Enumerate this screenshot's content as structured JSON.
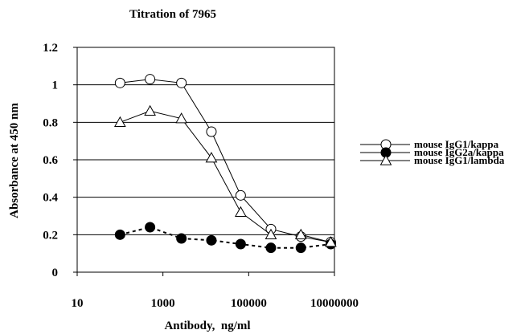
{
  "chart_data": {
    "type": "line",
    "title": "Titration of 7965",
    "xlabel": "Antibody,  ng/ml",
    "ylabel": "Absorbance at 450 nm",
    "x_scale": "log",
    "xlim": [
      10,
      10000000
    ],
    "ylim": [
      0,
      1.2
    ],
    "x_ticks": [
      10,
      1000,
      100000,
      10000000
    ],
    "x_tick_labels": [
      "10",
      "1000",
      "100000",
      "10000000"
    ],
    "y_ticks": [
      0,
      0.2,
      0.4,
      0.6,
      0.8,
      1,
      1.2
    ],
    "y_tick_labels": [
      "0",
      "0.2",
      "0.4",
      "0.6",
      "0.8",
      "1",
      "1.2"
    ],
    "grid": "horizontal",
    "legend_position": "right",
    "series": [
      {
        "name": "mouse IgG1/kappa",
        "marker": "circle-open",
        "line": "solid",
        "points": [
          [
            100,
            1.01
          ],
          [
            500,
            1.03
          ],
          [
            2700,
            1.01
          ],
          [
            13500,
            0.75
          ],
          [
            65000,
            0.41
          ],
          [
            330000,
            0.23
          ],
          [
            1650000,
            0.19
          ],
          [
            8200000,
            0.16
          ]
        ]
      },
      {
        "name": "mouse IgG2a/kappa",
        "marker": "circle-filled",
        "line": "dashed",
        "points": [
          [
            100,
            0.2
          ],
          [
            500,
            0.24
          ],
          [
            2700,
            0.18
          ],
          [
            13500,
            0.17
          ],
          [
            65000,
            0.15
          ],
          [
            330000,
            0.13
          ],
          [
            1650000,
            0.13
          ],
          [
            8200000,
            0.15
          ]
        ]
      },
      {
        "name": "mouse IgG1/lambda",
        "marker": "triangle-open",
        "line": "solid",
        "points": [
          [
            100,
            0.8
          ],
          [
            500,
            0.86
          ],
          [
            2700,
            0.82
          ],
          [
            13500,
            0.61
          ],
          [
            65000,
            0.32
          ],
          [
            330000,
            0.2
          ],
          [
            1650000,
            0.2
          ],
          [
            8200000,
            0.16
          ]
        ]
      }
    ]
  }
}
